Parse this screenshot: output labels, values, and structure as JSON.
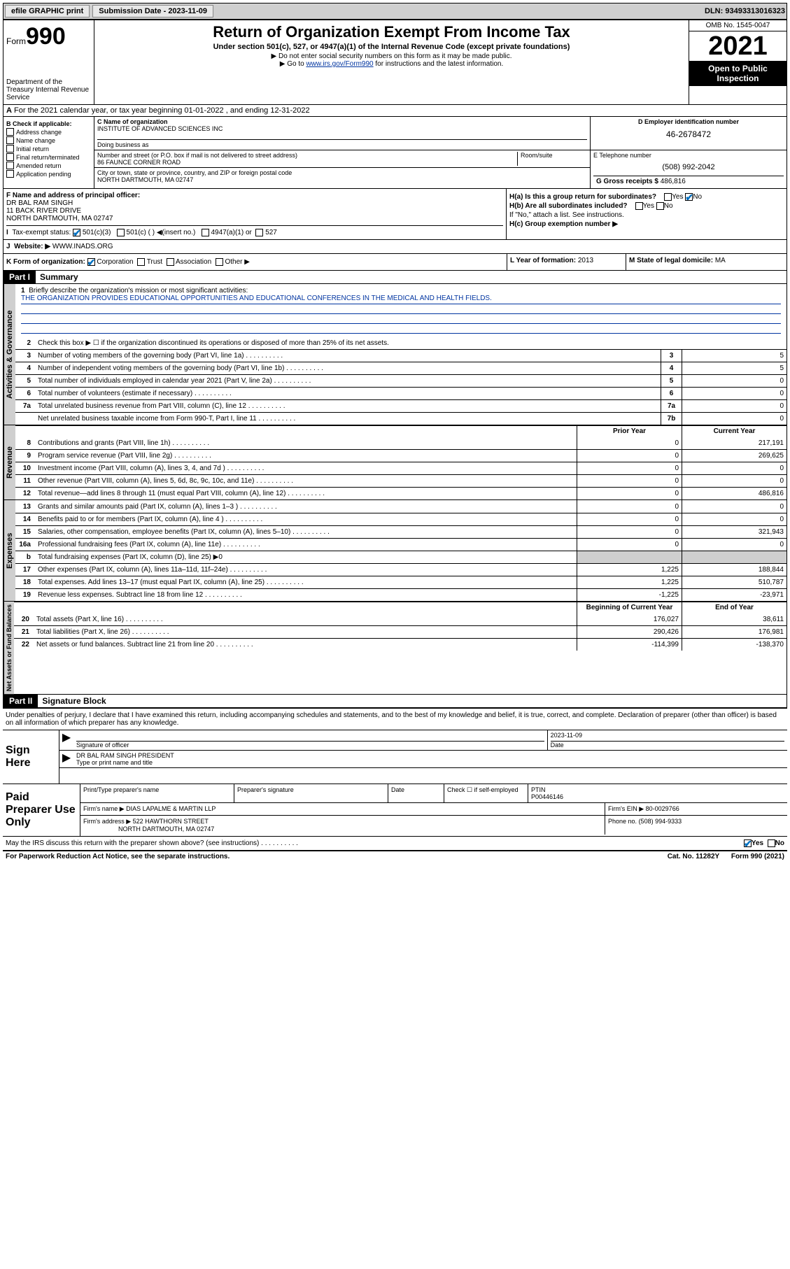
{
  "topbar": {
    "efile": "efile GRAPHIC print",
    "sub_label": "Submission Date - 2023-11-09",
    "dln": "DLN: 93493313016323"
  },
  "header": {
    "form_prefix": "Form",
    "form_num": "990",
    "dept": "Department of the Treasury Internal Revenue Service",
    "title": "Return of Organization Exempt From Income Tax",
    "sub": "Under section 501(c), 527, or 4947(a)(1) of the Internal Revenue Code (except private foundations)",
    "note1": "▶ Do not enter social security numbers on this form as it may be made public.",
    "note2_pre": "▶ Go to ",
    "note2_link": "www.irs.gov/Form990",
    "note2_post": " for instructions and the latest information.",
    "omb": "OMB No. 1545-0047",
    "year": "2021",
    "open": "Open to Public Inspection"
  },
  "section_a": "For the 2021 calendar year, or tax year beginning 01-01-2022   , and ending 12-31-2022",
  "box_b": {
    "title": "B Check if applicable:",
    "items": [
      "Address change",
      "Name change",
      "Initial return",
      "Final return/terminated",
      "Amended return",
      "Application pending"
    ]
  },
  "box_c": {
    "label": "C Name of organization",
    "name": "INSTITUTE OF ADVANCED SCIENCES INC",
    "dba_label": "Doing business as",
    "street_label": "Number and street (or P.O. box if mail is not delivered to street address)",
    "suite_label": "Room/suite",
    "street": "86 FAUNCE CORNER ROAD",
    "city_label": "City or town, state or province, country, and ZIP or foreign postal code",
    "city": "NORTH DARTMOUTH, MA  02747"
  },
  "box_d": {
    "label": "D Employer identification number",
    "ein": "46-2678472"
  },
  "box_e": {
    "label": "E Telephone number",
    "phone": "(508) 992-2042"
  },
  "box_g": {
    "label": "G Gross receipts $ ",
    "val": "486,816"
  },
  "box_f": {
    "label": "F Name and address of principal officer:",
    "name": "DR BAL RAM SINGH",
    "addr1": "11 BACK RIVER DRIVE",
    "addr2": "NORTH DARTMOUTH, MA  02747"
  },
  "box_h": {
    "ha": "H(a)  Is this a group return for subordinates?",
    "hb": "H(b)  Are all subordinates included?",
    "hb_note": "If \"No,\" attach a list. See instructions.",
    "hc": "H(c)  Group exemption number ▶",
    "yes": "Yes",
    "no": "No"
  },
  "box_i": {
    "label": "Tax-exempt status:",
    "c3": "501(c)(3)",
    "c": "501(c) (  ) ◀(insert no.)",
    "a1": "4947(a)(1) or",
    "s527": "527"
  },
  "box_j": {
    "label": "Website: ▶",
    "val": "WWW.INADS.ORG"
  },
  "box_k": {
    "label": "K Form of organization:",
    "corp": "Corporation",
    "trust": "Trust",
    "assoc": "Association",
    "other": "Other ▶"
  },
  "box_l": {
    "label": "L Year of formation: ",
    "val": "2013"
  },
  "box_m": {
    "label": "M State of legal domicile: ",
    "val": "MA"
  },
  "part1": {
    "label": "Part I",
    "title": "Summary"
  },
  "vtabs": {
    "gov": "Activities & Governance",
    "rev": "Revenue",
    "exp": "Expenses",
    "net": "Net Assets or Fund Balances"
  },
  "mission": {
    "label": "Briefly describe the organization's mission or most significant activities:",
    "text": "THE ORGANIZATION PROVIDES EDUCATIONAL OPPORTUNITIES AND EDUCATIONAL CONFERENCES IN THE MEDICAL AND HEALTH FIELDS."
  },
  "lines_gov": [
    {
      "n": "2",
      "d": "Check this box ▶ ☐  if the organization discontinued its operations or disposed of more than 25% of its net assets."
    },
    {
      "n": "3",
      "d": "Number of voting members of the governing body (Part VI, line 1a)",
      "b": "3",
      "v": "5"
    },
    {
      "n": "4",
      "d": "Number of independent voting members of the governing body (Part VI, line 1b)",
      "b": "4",
      "v": "5"
    },
    {
      "n": "5",
      "d": "Total number of individuals employed in calendar year 2021 (Part V, line 2a)",
      "b": "5",
      "v": "0"
    },
    {
      "n": "6",
      "d": "Total number of volunteers (estimate if necessary)",
      "b": "6",
      "v": "0"
    },
    {
      "n": "7a",
      "d": "Total unrelated business revenue from Part VIII, column (C), line 12",
      "b": "7a",
      "v": "0"
    },
    {
      "n": "",
      "d": "Net unrelated business taxable income from Form 990-T, Part I, line 11",
      "b": "7b",
      "v": "0"
    }
  ],
  "col_headers": {
    "prior": "Prior Year",
    "curr": "Current Year",
    "beg": "Beginning of Current Year",
    "end": "End of Year"
  },
  "lines_rev": [
    {
      "n": "8",
      "d": "Contributions and grants (Part VIII, line 1h)",
      "p": "0",
      "c": "217,191"
    },
    {
      "n": "9",
      "d": "Program service revenue (Part VIII, line 2g)",
      "p": "0",
      "c": "269,625"
    },
    {
      "n": "10",
      "d": "Investment income (Part VIII, column (A), lines 3, 4, and 7d )",
      "p": "0",
      "c": "0"
    },
    {
      "n": "11",
      "d": "Other revenue (Part VIII, column (A), lines 5, 6d, 8c, 9c, 10c, and 11e)",
      "p": "0",
      "c": "0"
    },
    {
      "n": "12",
      "d": "Total revenue—add lines 8 through 11 (must equal Part VIII, column (A), line 12)",
      "p": "0",
      "c": "486,816"
    }
  ],
  "lines_exp": [
    {
      "n": "13",
      "d": "Grants and similar amounts paid (Part IX, column (A), lines 1–3 )",
      "p": "0",
      "c": "0"
    },
    {
      "n": "14",
      "d": "Benefits paid to or for members (Part IX, column (A), line 4 )",
      "p": "0",
      "c": "0"
    },
    {
      "n": "15",
      "d": "Salaries, other compensation, employee benefits (Part IX, column (A), lines 5–10)",
      "p": "0",
      "c": "321,943"
    },
    {
      "n": "16a",
      "d": "Professional fundraising fees (Part IX, column (A), line 11e)",
      "p": "0",
      "c": "0"
    },
    {
      "n": "b",
      "d": "Total fundraising expenses (Part IX, column (D), line 25) ▶0",
      "shade": true
    },
    {
      "n": "17",
      "d": "Other expenses (Part IX, column (A), lines 11a–11d, 11f–24e)",
      "p": "1,225",
      "c": "188,844"
    },
    {
      "n": "18",
      "d": "Total expenses. Add lines 13–17 (must equal Part IX, column (A), line 25)",
      "p": "1,225",
      "c": "510,787"
    },
    {
      "n": "19",
      "d": "Revenue less expenses. Subtract line 18 from line 12",
      "p": "-1,225",
      "c": "-23,971"
    }
  ],
  "lines_net": [
    {
      "n": "20",
      "d": "Total assets (Part X, line 16)",
      "p": "176,027",
      "c": "38,611"
    },
    {
      "n": "21",
      "d": "Total liabilities (Part X, line 26)",
      "p": "290,426",
      "c": "176,981"
    },
    {
      "n": "22",
      "d": "Net assets or fund balances. Subtract line 21 from line 20",
      "p": "-114,399",
      "c": "-138,370"
    }
  ],
  "part2": {
    "label": "Part II",
    "title": "Signature Block"
  },
  "sig": {
    "intro": "Under penalties of perjury, I declare that I have examined this return, including accompanying schedules and statements, and to the best of my knowledge and belief, it is true, correct, and complete. Declaration of preparer (other than officer) is based on all information of which preparer has any knowledge.",
    "here": "Sign Here",
    "officer_sig": "Signature of officer",
    "date_label": "Date",
    "date": "2023-11-09",
    "officer_name": "DR BAL RAM SINGH  PRESIDENT",
    "type_label": "Type or print name and title"
  },
  "prep": {
    "label": "Paid Preparer Use Only",
    "h1": "Print/Type preparer's name",
    "h2": "Preparer's signature",
    "h3": "Date",
    "h4_check": "Check ☐ if self-employed",
    "h5": "PTIN",
    "ptin": "P00446146",
    "firm_label": "Firm's name   ▶",
    "firm": "DIAS LAPALME & MARTIN LLP",
    "ein_label": "Firm's EIN ▶",
    "ein": "80-0029766",
    "addr_label": "Firm's address ▶",
    "addr1": "522 HAWTHORN STREET",
    "addr2": "NORTH DARTMOUTH, MA  02747",
    "phone_label": "Phone no.",
    "phone": "(508) 994-9333"
  },
  "footer": {
    "discuss": "May the IRS discuss this return with the preparer shown above? (see instructions)",
    "yes": "Yes",
    "no": "No",
    "pwk": "For Paperwork Reduction Act Notice, see the separate instructions.",
    "cat": "Cat. No. 11282Y",
    "form": "Form 990 (2021)"
  }
}
